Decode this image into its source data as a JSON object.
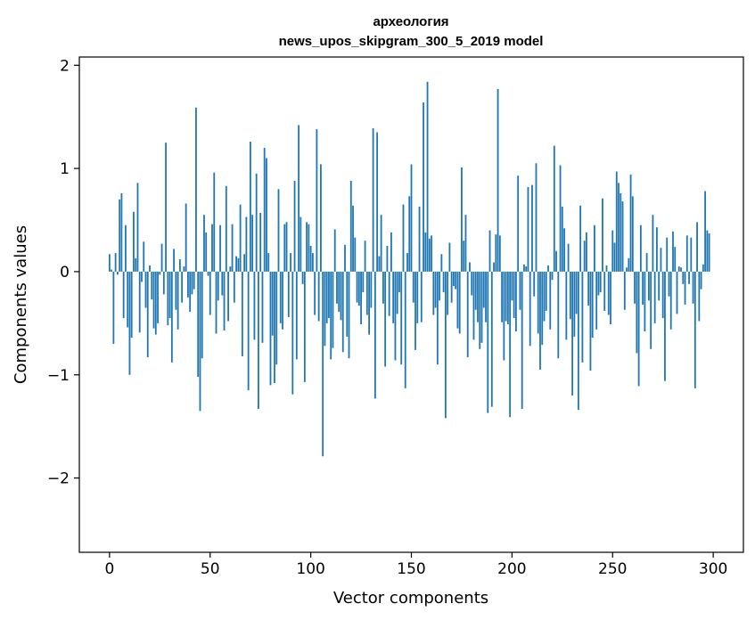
{
  "chart_data": {
    "type": "bar",
    "title_line1": "археология",
    "title_line2": "news_upos_skipgram_300_5_2019 model",
    "xlabel": "Vector components",
    "ylabel": "Components values",
    "xlim": [
      -15,
      315
    ],
    "ylim": [
      -2.72,
      2.08
    ],
    "xticks": [
      0,
      50,
      100,
      150,
      200,
      250,
      300
    ],
    "yticks": [
      -2,
      -1,
      0,
      1,
      2
    ],
    "ytick_labels": [
      "−2",
      "−1",
      "0",
      "1",
      "2"
    ],
    "bar_color": "#1f77b4",
    "values": [
      0.17,
      0.02,
      -0.7,
      0.18,
      -0.03,
      0.7,
      0.76,
      -0.45,
      0.45,
      -0.54,
      -1.0,
      -0.64,
      0.58,
      0.13,
      0.86,
      -0.59,
      -0.1,
      0.29,
      -0.35,
      -0.83,
      0.06,
      -0.27,
      -0.55,
      -0.61,
      -0.5,
      -0.03,
      0.27,
      -0.22,
      1.25,
      -0.52,
      -0.45,
      -0.88,
      0.22,
      -0.37,
      -0.56,
      0.12,
      -0.3,
      0.05,
      0.66,
      -0.25,
      -0.39,
      -0.22,
      -0.17,
      1.59,
      -1.02,
      -1.35,
      -0.84,
      0.55,
      0.38,
      -0.04,
      -0.42,
      0.46,
      0.96,
      -0.6,
      -0.28,
      0.45,
      -0.23,
      -0.57,
      0.83,
      -0.48,
      0.05,
      0.46,
      -0.3,
      0.15,
      0.13,
      0.65,
      -0.82,
      0.17,
      0.53,
      -1.15,
      1.26,
      0.55,
      -0.66,
      0.95,
      -1.33,
      0.57,
      -0.69,
      1.2,
      1.1,
      0.18,
      -1.1,
      -0.62,
      -1.08,
      -0.9,
      0.8,
      -0.5,
      -0.56,
      0.46,
      0.48,
      -0.44,
      0.18,
      -1.19,
      0.88,
      -0.85,
      1.42,
      0.53,
      -0.12,
      -1.07,
      0.48,
      0.46,
      0.25,
      0.18,
      -0.42,
      1.38,
      -0.48,
      1.04,
      -1.79,
      -0.72,
      -0.5,
      -0.45,
      -0.85,
      -0.74,
      0.41,
      -0.31,
      -0.39,
      -0.47,
      -0.78,
      0.26,
      -0.63,
      -0.84,
      0.88,
      0.64,
      0.33,
      -0.3,
      -0.33,
      -0.51,
      -0.2,
      0.3,
      -0.42,
      -0.61,
      -0.35,
      1.39,
      -1.23,
      1.35,
      0.15,
      0.55,
      -0.31,
      -0.92,
      0.25,
      -0.43,
      0.38,
      -0.5,
      -0.86,
      -0.41,
      -0.2,
      -0.9,
      0.65,
      -1.13,
      0.18,
      0.73,
      1.04,
      -0.3,
      -0.76,
      -0.5,
      0.63,
      -0.49,
      1.64,
      0.38,
      1.84,
      0.32,
      0.35,
      -0.42,
      -0.35,
      -0.9,
      -0.28,
      0.17,
      -0.2,
      -1.42,
      -0.42,
      0.28,
      -0.3,
      -0.14,
      -0.17,
      -0.55,
      -0.6,
      1.01,
      0.3,
      0.55,
      -0.83,
      0.09,
      -0.23,
      -0.66,
      -0.37,
      -0.49,
      -0.75,
      -0.69,
      -0.35,
      -0.49,
      -1.37,
      0.4,
      -1.31,
      0.09,
      0.36,
      1.77,
      0.35,
      -0.49,
      -0.86,
      -0.48,
      -0.51,
      -1.41,
      -0.28,
      -0.45,
      -0.58,
      0.93,
      -0.37,
      -1.33,
      0.07,
      0.05,
      0.82,
      -0.72,
      0.84,
      -0.24,
      1.05,
      -0.6,
      -0.95,
      -0.71,
      -0.48,
      -0.38,
      0.06,
      -0.56,
      -0.08,
      1.22,
      0.2,
      -0.84,
      1.03,
      0.63,
      0.42,
      -0.66,
      0.27,
      -0.46,
      -1.2,
      -0.63,
      -0.41,
      -1.34,
      0.64,
      -0.88,
      0.3,
      0.38,
      -0.33,
      -0.96,
      -0.64,
      0.45,
      -0.56,
      -0.23,
      -0.2,
      0.71,
      -0.38,
      0.06,
      -0.42,
      -0.51,
      0.4,
      0.28,
      0.97,
      0.86,
      0.76,
      0.68,
      -0.37,
      0.04,
      0.13,
      0.94,
      0.73,
      -0.31,
      -0.79,
      -1.11,
      0.45,
      -0.32,
      -0.58,
      0.18,
      -0.28,
      -0.75,
      0.55,
      -0.5,
      0.43,
      -0.28,
      0.23,
      -0.45,
      -1.06,
      0.33,
      -0.24,
      -0.56,
      0.39,
      0.24,
      -0.41,
      0.05,
      0.04,
      -0.12,
      -0.32,
      0.35,
      -0.12,
      0.33,
      -0.31,
      -1.13,
      0.48,
      -0.48,
      -0.17,
      0.07,
      0.78,
      0.4,
      0.37
    ]
  }
}
